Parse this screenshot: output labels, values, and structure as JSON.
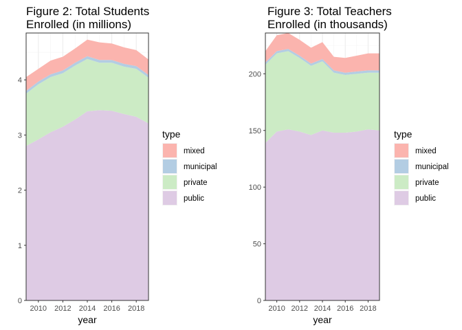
{
  "chart_data": [
    {
      "type": "area",
      "stacked": true,
      "title": [
        "Figure 2: Total Students",
        "Enrolled (in millions)"
      ],
      "xlabel": "year",
      "ylabel": "",
      "xlim": [
        2009,
        2019
      ],
      "ylim": [
        0,
        4.85
      ],
      "x_ticks": [
        2010,
        2012,
        2014,
        2016,
        2018
      ],
      "y_ticks": [
        0,
        1,
        2,
        3,
        4
      ],
      "grid": true,
      "legend_title": "type",
      "legend_position": "right",
      "x": [
        2009,
        2010,
        2011,
        2012,
        2013,
        2014,
        2015,
        2016,
        2017,
        2018,
        2019
      ],
      "series": [
        {
          "name": "public",
          "color": "#decbe4",
          "values": [
            2.8,
            2.92,
            3.05,
            3.15,
            3.28,
            3.43,
            3.45,
            3.44,
            3.38,
            3.33,
            3.21
          ]
        },
        {
          "name": "private",
          "color": "#ccebc5",
          "values": [
            0.95,
            1.0,
            1.0,
            0.97,
            0.98,
            0.95,
            0.86,
            0.87,
            0.86,
            0.87,
            0.83
          ]
        },
        {
          "name": "municipal",
          "color": "#b3cde3",
          "values": [
            0.05,
            0.05,
            0.05,
            0.05,
            0.05,
            0.05,
            0.05,
            0.05,
            0.05,
            0.05,
            0.05
          ]
        },
        {
          "name": "mixed",
          "color": "#fbb4ae",
          "values": [
            0.25,
            0.23,
            0.25,
            0.25,
            0.26,
            0.3,
            0.32,
            0.3,
            0.3,
            0.29,
            0.28
          ]
        }
      ]
    },
    {
      "type": "area",
      "stacked": true,
      "title": [
        "Figure 3: Total Teachers",
        "Enrolled (in thousands)"
      ],
      "xlabel": "year",
      "ylabel": "",
      "xlim": [
        2009,
        2019
      ],
      "ylim": [
        0,
        236
      ],
      "x_ticks": [
        2010,
        2012,
        2014,
        2016,
        2018
      ],
      "y_ticks": [
        0,
        50,
        100,
        150,
        200
      ],
      "grid": true,
      "legend_title": "type",
      "legend_position": "right",
      "x": [
        2009,
        2010,
        2011,
        2012,
        2013,
        2014,
        2015,
        2016,
        2017,
        2018,
        2019
      ],
      "series": [
        {
          "name": "public",
          "color": "#decbe4",
          "values": [
            139,
            149,
            151,
            149,
            146,
            150,
            148,
            148,
            149,
            151,
            150
          ]
        },
        {
          "name": "private",
          "color": "#ccebc5",
          "values": [
            69,
            69,
            69,
            65,
            61,
            61,
            53,
            51,
            51,
            50,
            51
          ]
        },
        {
          "name": "municipal",
          "color": "#b3cde3",
          "values": [
            2,
            2,
            2,
            2,
            2,
            2,
            2,
            2,
            2,
            2,
            2
          ]
        },
        {
          "name": "mixed",
          "color": "#fbb4ae",
          "values": [
            10,
            14,
            14,
            14,
            14,
            15,
            12,
            13,
            14,
            15,
            15
          ]
        }
      ]
    }
  ]
}
